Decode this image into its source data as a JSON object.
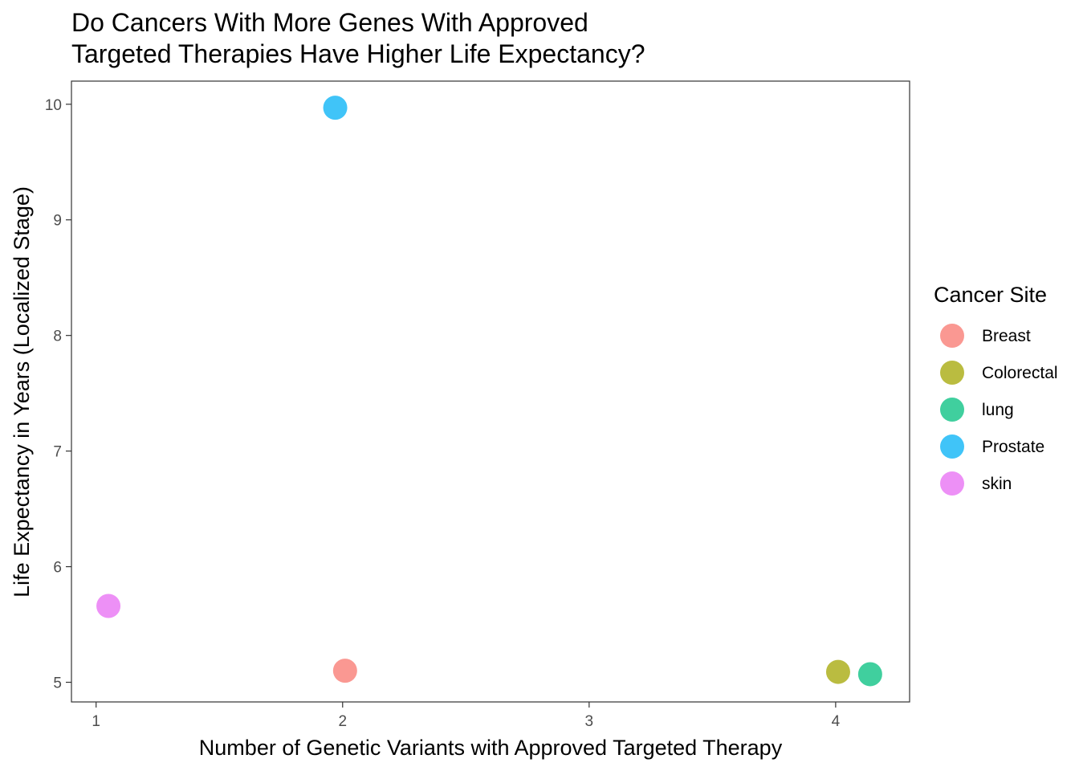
{
  "chart_data": {
    "type": "scatter",
    "title_lines": [
      "Do Cancers With More Genes With Approved",
      "Targeted Therapies Have Higher Life Expectancy?"
    ],
    "xlabel": "Number of Genetic Variants with Approved Targeted Therapy",
    "ylabel": "Life Expectancy in Years (Localized Stage)",
    "xlim": [
      0.9,
      4.3
    ],
    "ylim": [
      4.83,
      10.2
    ],
    "x_ticks": [
      1,
      2,
      3,
      4
    ],
    "y_ticks": [
      5,
      6,
      7,
      8,
      9,
      10
    ],
    "grid": false,
    "legend_position": "right",
    "legend": {
      "title": "Cancer Site",
      "entries": [
        {
          "label": "Breast",
          "color": "#F8766D"
        },
        {
          "label": "Colorectal",
          "color": "#A3A500"
        },
        {
          "label": "lung",
          "color": "#00BF7D"
        },
        {
          "label": "Prostate",
          "color": "#00B0F6"
        },
        {
          "label": "skin",
          "color": "#E76BF3"
        }
      ]
    },
    "points": [
      {
        "site": "Breast",
        "x": 2.01,
        "y": 5.1,
        "color": "#F8766D"
      },
      {
        "site": "Colorectal",
        "x": 4.01,
        "y": 5.09,
        "color": "#A3A500"
      },
      {
        "site": "lung",
        "x": 4.14,
        "y": 5.07,
        "color": "#00BF7D"
      },
      {
        "site": "Prostate",
        "x": 1.97,
        "y": 9.97,
        "color": "#00B0F6"
      },
      {
        "site": "skin",
        "x": 1.05,
        "y": 5.66,
        "color": "#E76BF3"
      }
    ]
  }
}
